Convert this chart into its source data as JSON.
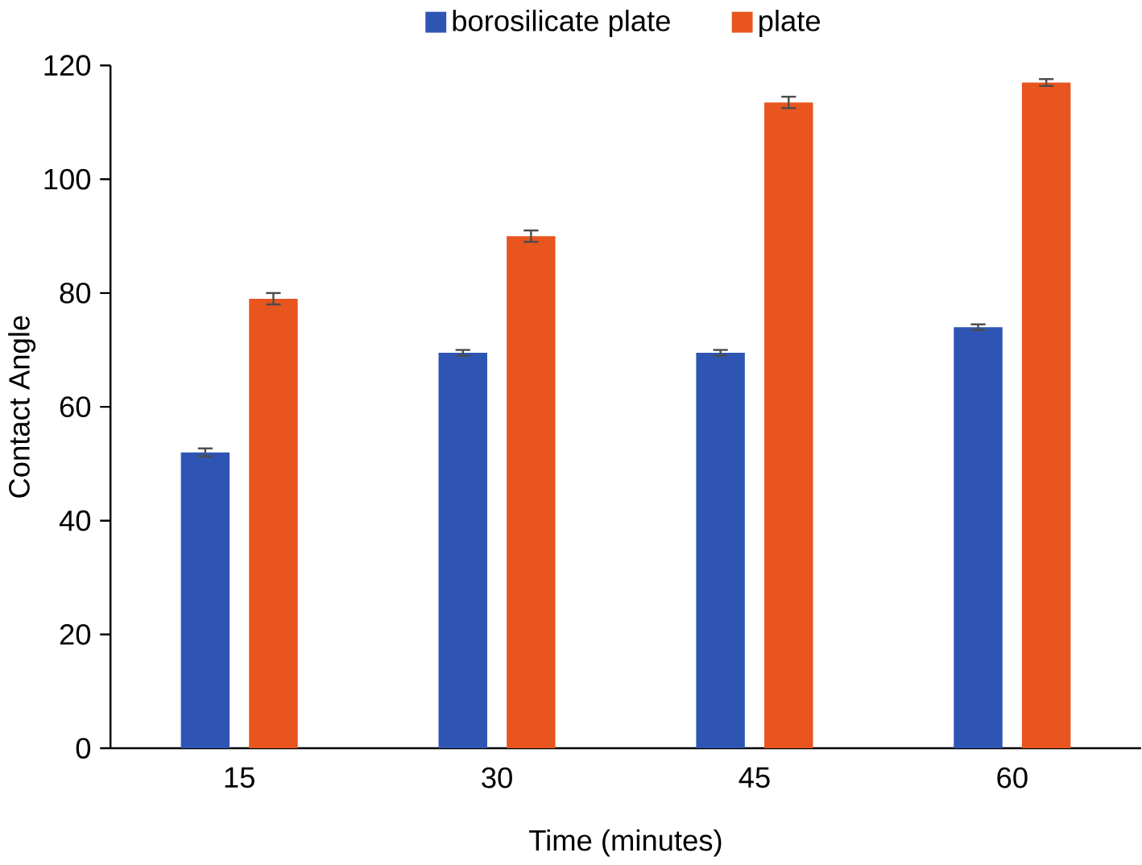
{
  "chart_data": {
    "type": "bar",
    "xlabel": "Time (minutes)",
    "ylabel": "Contact Angle",
    "categories": [
      "15",
      "30",
      "45",
      "60"
    ],
    "series": [
      {
        "name": "borosilicate plate",
        "color": "#2f55b4",
        "values": [
          52,
          69.5,
          69.5,
          74
        ],
        "errors": [
          0.7,
          0.5,
          0.5,
          0.5
        ]
      },
      {
        "name": "plate",
        "color": "#e8551e",
        "values": [
          79,
          90,
          113.5,
          117
        ],
        "errors": [
          1,
          1,
          1,
          0.6
        ]
      }
    ],
    "ylim": [
      0,
      120
    ],
    "yticks": [
      0,
      20,
      40,
      60,
      80,
      100,
      120
    ],
    "legend": "top"
  }
}
